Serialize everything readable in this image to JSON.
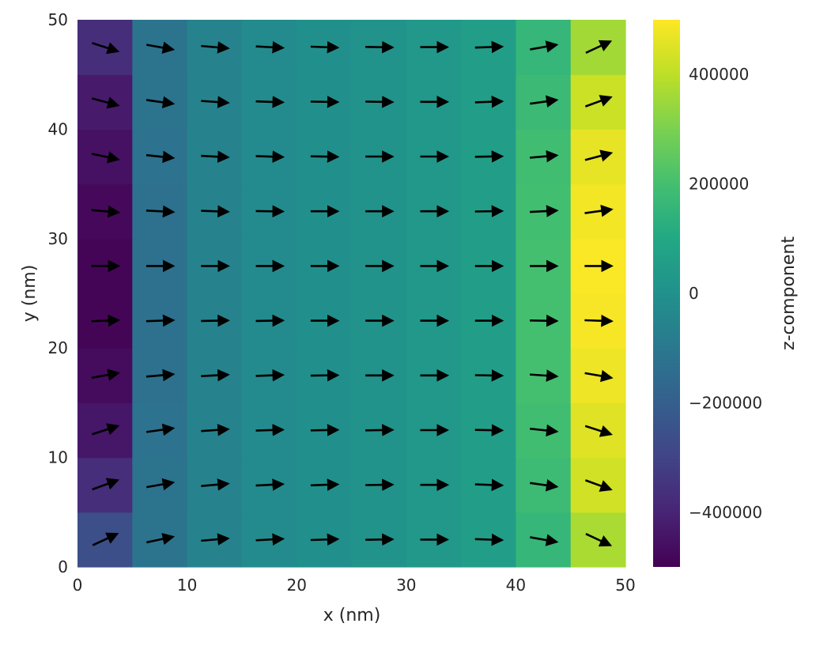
{
  "chart_data": {
    "type": "heatmap",
    "title": "",
    "xlabel": "x (nm)",
    "ylabel": "y (nm)",
    "xlim": [
      0,
      50
    ],
    "ylim": [
      0,
      50
    ],
    "x_ticks": [
      "0",
      "10",
      "20",
      "30",
      "40",
      "50"
    ],
    "y_ticks": [
      "0",
      "10",
      "20",
      "30",
      "40",
      "50"
    ],
    "x_cells": [
      2.5,
      7.5,
      12.5,
      17.5,
      22.5,
      27.5,
      32.5,
      37.5,
      42.5,
      47.5
    ],
    "y_cells": [
      2.5,
      7.5,
      12.5,
      17.5,
      22.5,
      27.5,
      32.5,
      37.5,
      42.5,
      47.5
    ],
    "z_values": [
      [
        -260000,
        -115000,
        -55000,
        -25000,
        -5000,
        10000,
        30000,
        55000,
        160000,
        370000
      ],
      [
        -370000,
        -120000,
        -55000,
        -25000,
        -5000,
        10000,
        30000,
        55000,
        180000,
        430000
      ],
      [
        -440000,
        -125000,
        -55000,
        -25000,
        -5000,
        10000,
        30000,
        55000,
        190000,
        455000
      ],
      [
        -470000,
        -130000,
        -55000,
        -25000,
        -5000,
        10000,
        30000,
        55000,
        200000,
        475000
      ],
      [
        -490000,
        -130000,
        -55000,
        -25000,
        -5000,
        10000,
        30000,
        55000,
        200000,
        490000
      ],
      [
        -490000,
        -130000,
        -55000,
        -25000,
        -5000,
        10000,
        30000,
        55000,
        200000,
        495000
      ],
      [
        -480000,
        -130000,
        -55000,
        -25000,
        -5000,
        10000,
        30000,
        55000,
        195000,
        485000
      ],
      [
        -455000,
        -125000,
        -55000,
        -25000,
        -5000,
        10000,
        30000,
        55000,
        190000,
        465000
      ],
      [
        -430000,
        -120000,
        -55000,
        -25000,
        -5000,
        10000,
        30000,
        55000,
        175000,
        420000
      ],
      [
        -370000,
        -115000,
        -55000,
        -25000,
        -5000,
        10000,
        30000,
        55000,
        160000,
        360000
      ]
    ],
    "arrow_angles_deg": [
      [
        25,
        12,
        5,
        3,
        2,
        1,
        0,
        -2,
        -10,
        -25
      ],
      [
        20,
        10,
        5,
        3,
        2,
        1,
        0,
        -2,
        -8,
        -20
      ],
      [
        18,
        8,
        4,
        2,
        1,
        1,
        0,
        -1,
        -6,
        -18
      ],
      [
        10,
        5,
        3,
        2,
        1,
        0,
        0,
        -1,
        -4,
        -10
      ],
      [
        2,
        2,
        1,
        1,
        0,
        0,
        0,
        0,
        -1,
        -2
      ],
      [
        0,
        0,
        0,
        0,
        0,
        0,
        0,
        0,
        0,
        0
      ],
      [
        -5,
        -3,
        -2,
        -1,
        0,
        0,
        0,
        1,
        3,
        8
      ],
      [
        -12,
        -6,
        -3,
        -2,
        -1,
        0,
        0,
        1,
        5,
        15
      ],
      [
        -15,
        -8,
        -4,
        -2,
        -1,
        -1,
        0,
        2,
        8,
        20
      ],
      [
        -18,
        -10,
        -5,
        -3,
        -2,
        -1,
        0,
        2,
        10,
        25
      ]
    ],
    "colorbar": {
      "label": "z-component",
      "colormap": "viridis",
      "vmin": -500000,
      "vmax": 500000,
      "ticks": [
        -400000,
        -200000,
        0,
        200000,
        400000
      ],
      "tick_labels": [
        "−400000",
        "−200000",
        "0",
        "200000",
        "400000"
      ]
    },
    "grid": false,
    "arrow_color": "#000000"
  }
}
